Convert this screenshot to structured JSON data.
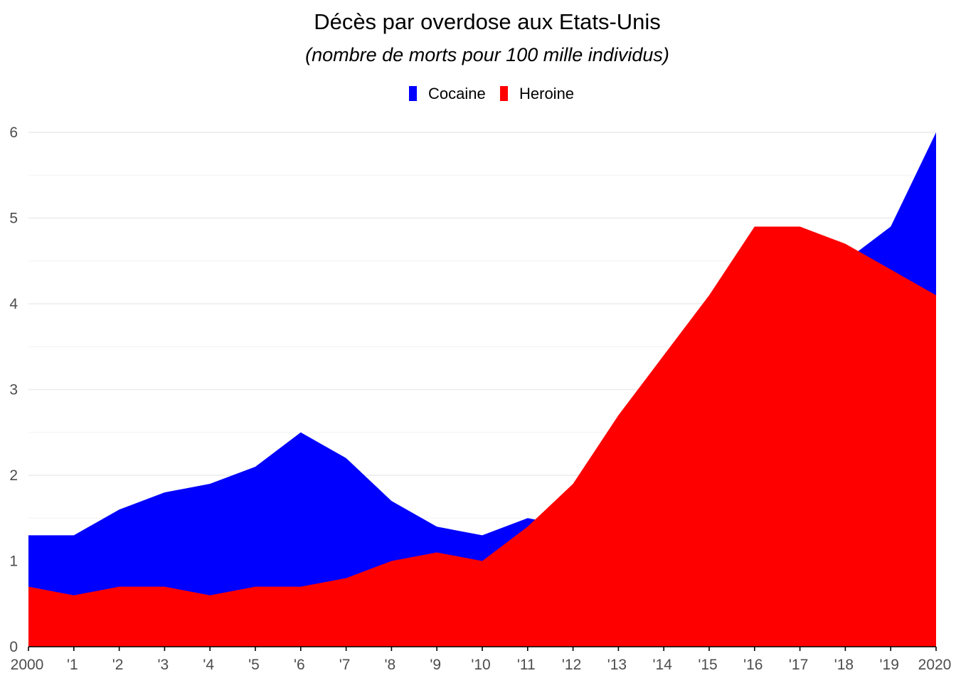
{
  "chart_data": {
    "type": "area",
    "stacked": false,
    "title": "Décès par overdose aux Etats-Unis",
    "subtitle": "(nombre de morts pour 100 mille individus)",
    "x": [
      2000,
      2001,
      2002,
      2003,
      2004,
      2005,
      2006,
      2007,
      2008,
      2009,
      2010,
      2011,
      2012,
      2013,
      2014,
      2015,
      2016,
      2017,
      2018,
      2019,
      2020
    ],
    "x_tick_labels": [
      "2000",
      "'1",
      "'2",
      "'3",
      "'4",
      "'5",
      "'6",
      "'7",
      "'8",
      "'9",
      "'10",
      "'11",
      "'12",
      "'13",
      "'14",
      "'15",
      "'16",
      "'17",
      "'18",
      "'19",
      "2020"
    ],
    "y_ticks": [
      0,
      1,
      2,
      3,
      4,
      5,
      6
    ],
    "ylim": [
      0,
      6
    ],
    "series": [
      {
        "name": "Cocaine",
        "color": "#0000ff",
        "values": [
          1.3,
          1.3,
          1.6,
          1.8,
          1.9,
          2.1,
          2.5,
          2.2,
          1.7,
          1.4,
          1.3,
          1.5,
          1.4,
          1.6,
          1.8,
          2.2,
          3.2,
          4.2,
          4.5,
          4.9,
          6.0
        ]
      },
      {
        "name": "Heroine",
        "color": "#ff0000",
        "values": [
          0.7,
          0.6,
          0.7,
          0.7,
          0.6,
          0.7,
          0.7,
          0.8,
          1.0,
          1.1,
          1.0,
          1.4,
          1.9,
          2.7,
          3.4,
          4.1,
          4.9,
          4.9,
          4.7,
          4.4,
          4.1
        ]
      }
    ],
    "legend_position": "top-center",
    "grid": "horizontal"
  }
}
